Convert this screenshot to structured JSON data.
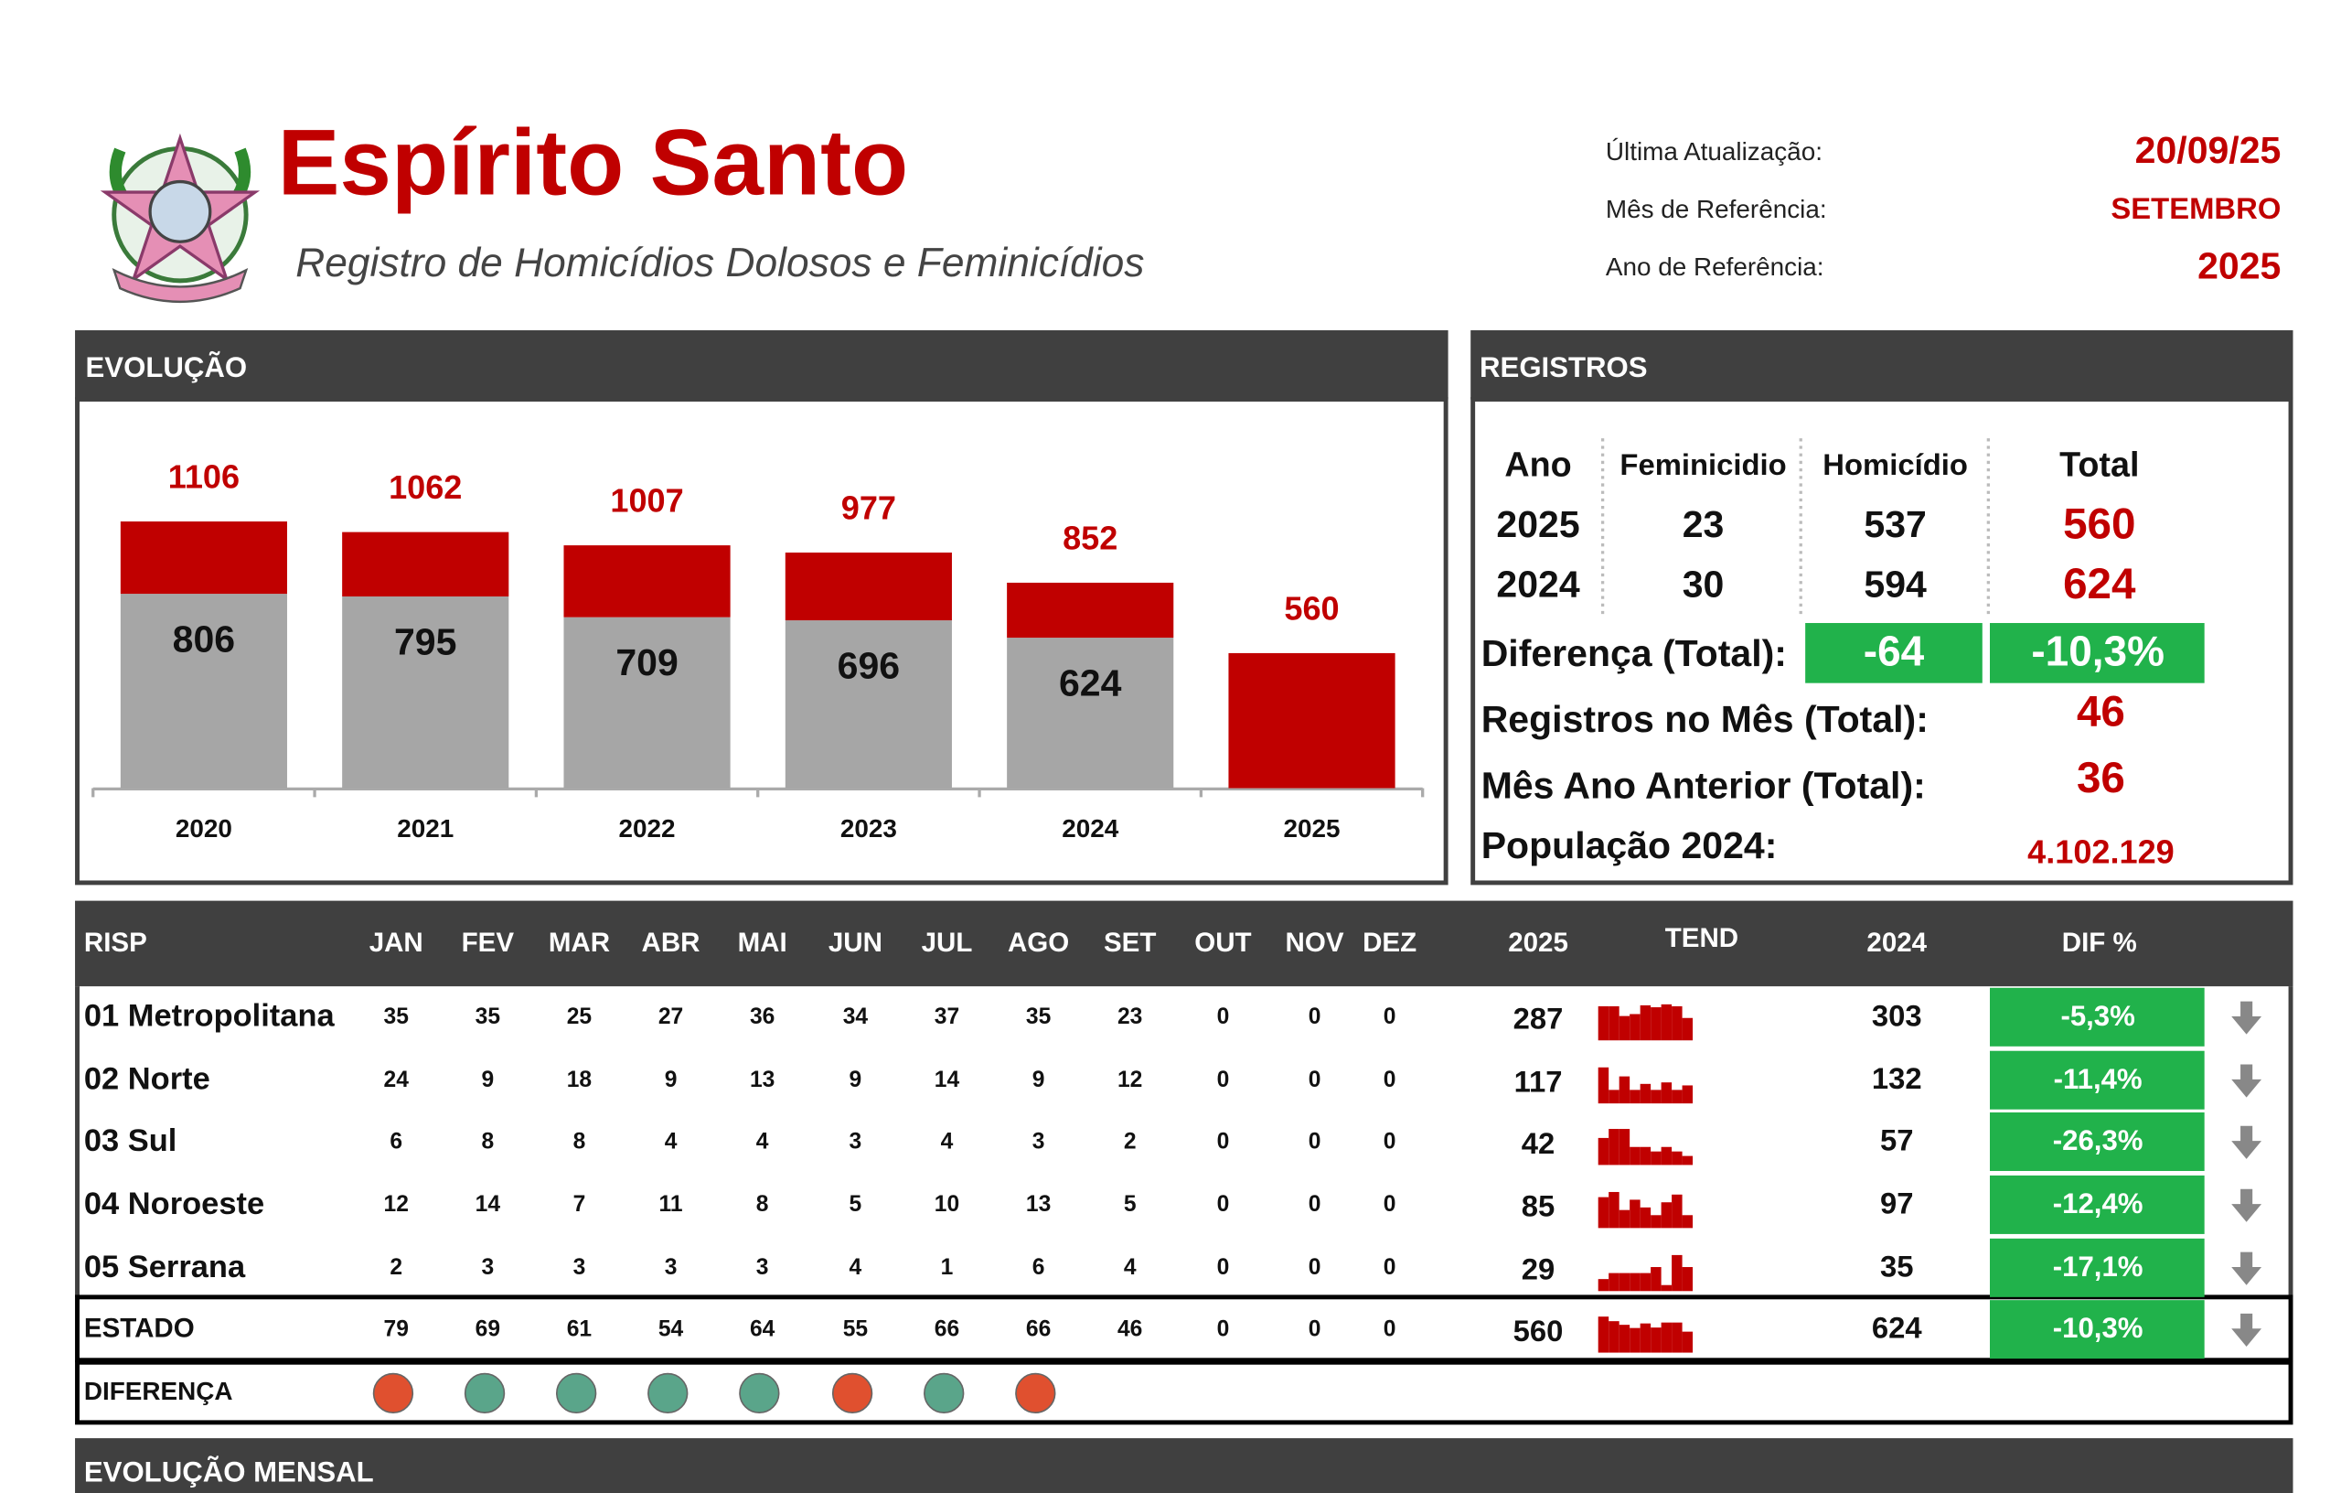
{
  "header": {
    "title": "Espírito Santo",
    "subtitle": "Registro de Homicídios Dolosos e Feminicídios",
    "info": [
      {
        "label": "Última Atualização:",
        "value": "20/09/25"
      },
      {
        "label": "Mês de Referência:",
        "value": "SETEMBRO"
      },
      {
        "label": "Ano de Referência:",
        "value": "2025"
      }
    ]
  },
  "chart_data": {
    "type": "bar",
    "title": "EVOLUÇÃO",
    "stacked": true,
    "categories": [
      "2020",
      "2021",
      "2022",
      "2023",
      "2024",
      "2025"
    ],
    "series": [
      {
        "color": "#a6a6a6",
        "values": [
          806,
          795,
          709,
          696,
          624,
          null
        ]
      },
      {
        "color": "#c00000",
        "values": [
          300,
          267,
          298,
          281,
          228,
          560
        ]
      }
    ],
    "totals": [
      1106,
      1062,
      1007,
      977,
      852,
      560
    ],
    "ylim": [
      0,
      1600
    ]
  },
  "registros": {
    "title": "REGISTROS",
    "headers": [
      "Ano",
      "Feminicidio",
      "Homicídio",
      "Total"
    ],
    "rows": [
      [
        2025,
        23,
        537,
        560
      ],
      [
        2024,
        30,
        594,
        624
      ]
    ],
    "diferenca": {
      "label": "Diferença (Total):",
      "values": [
        "-64",
        "-10,3%"
      ]
    },
    "items": [
      {
        "label": "Registros no Mês (Total):",
        "value": 46
      },
      {
        "label": "Mês Ano Anterior (Total):",
        "value": 36
      },
      {
        "label": "População 2024:",
        "value": "4.102.129"
      }
    ]
  },
  "risp": {
    "headers": [
      "RISP",
      "JAN",
      "FEV",
      "MAR",
      "ABR",
      "MAI",
      "JUN",
      "JUL",
      "AGO",
      "SET",
      "OUT",
      "NOV",
      "DEZ",
      "2025",
      "TEND",
      "2024",
      "DIF %"
    ],
    "rows": [
      {
        "name": "01 Metropolitana",
        "months": [
          35,
          35,
          25,
          27,
          36,
          34,
          37,
          35,
          23,
          0,
          0,
          0
        ],
        "total_2025": 287,
        "total_2024": 303,
        "dif": "-5,3%"
      },
      {
        "name": "02 Norte",
        "months": [
          24,
          9,
          18,
          9,
          13,
          9,
          14,
          9,
          12,
          0,
          0,
          0
        ],
        "total_2025": 117,
        "total_2024": 132,
        "dif": "-11,4%"
      },
      {
        "name": "03 Sul",
        "months": [
          6,
          8,
          8,
          4,
          4,
          3,
          4,
          3,
          2,
          0,
          0,
          0
        ],
        "total_2025": 42,
        "total_2024": 57,
        "dif": "-26,3%"
      },
      {
        "name": "04 Noroeste",
        "months": [
          12,
          14,
          7,
          11,
          8,
          5,
          10,
          13,
          5,
          0,
          0,
          0
        ],
        "total_2025": 85,
        "total_2024": 97,
        "dif": "-12,4%"
      },
      {
        "name": "05 Serrana",
        "months": [
          2,
          3,
          3,
          3,
          3,
          4,
          1,
          6,
          4,
          0,
          0,
          0
        ],
        "total_2025": 29,
        "total_2024": 35,
        "dif": "-17,1%"
      },
      {
        "name": "ESTADO",
        "months": [
          79,
          69,
          61,
          54,
          64,
          55,
          66,
          66,
          46,
          0,
          0,
          0
        ],
        "total_2025": 560,
        "total_2024": 624,
        "dif": "-10,3%"
      }
    ],
    "diferenca": {
      "label": "DIFERENÇA",
      "colors": [
        "#e0502f",
        "#5aa58a",
        "#5aa58a",
        "#5aa58a",
        "#5aa58a",
        "#e0502f",
        "#5aa58a",
        "#e0502f"
      ]
    }
  },
  "evolucao_mensal": {
    "title": "EVOLUÇÃO MENSAL"
  }
}
